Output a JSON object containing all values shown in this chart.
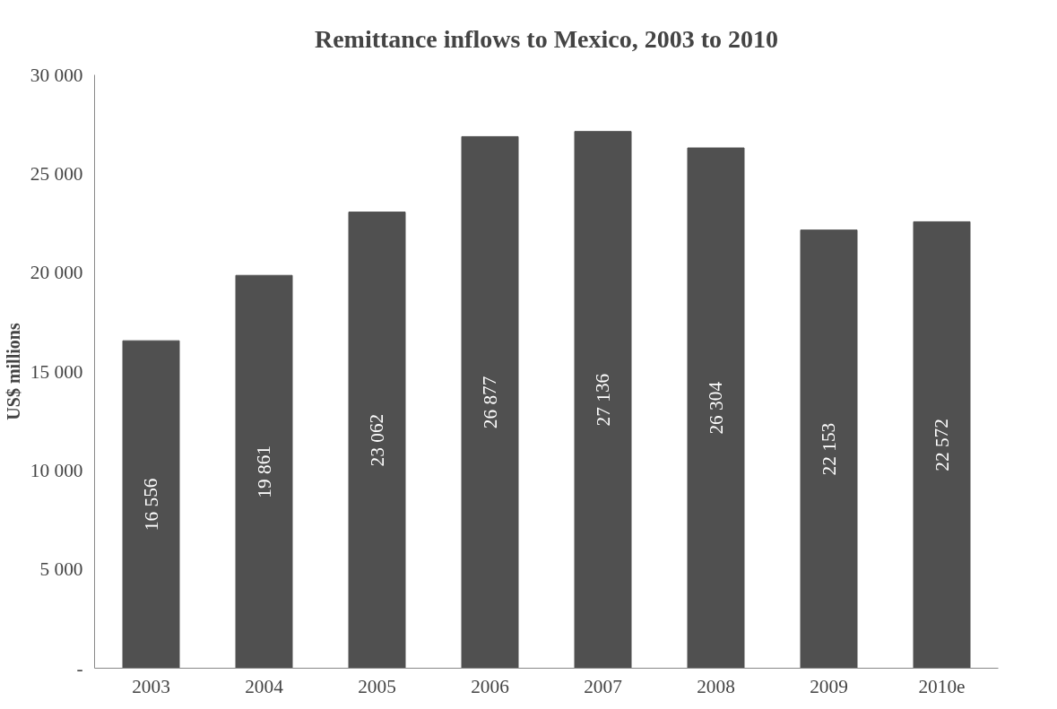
{
  "chart_data": {
    "type": "bar",
    "title": "Remittance inflows to Mexico, 2003 to 2010",
    "ylabel": "US$ millions",
    "categories": [
      "2003",
      "2004",
      "2005",
      "2006",
      "2007",
      "2008",
      "2009",
      "2010e"
    ],
    "values": [
      16556,
      19861,
      23062,
      26877,
      27136,
      26304,
      22153,
      22572
    ],
    "value_labels": [
      "16 556",
      "19 861",
      "23 062",
      "26 877",
      "27 136",
      "26 304",
      "22 153",
      "22 572"
    ],
    "color": "#505050",
    "ylim": [
      0,
      30000
    ],
    "yticks": [
      {
        "value": 0,
        "label": "-"
      },
      {
        "value": 5000,
        "label": "5 000"
      },
      {
        "value": 10000,
        "label": "10 000"
      },
      {
        "value": 15000,
        "label": "15 000"
      },
      {
        "value": 20000,
        "label": "20 000"
      },
      {
        "value": 25000,
        "label": "25 000"
      },
      {
        "value": 30000,
        "label": "30 000"
      }
    ],
    "grid": false
  }
}
